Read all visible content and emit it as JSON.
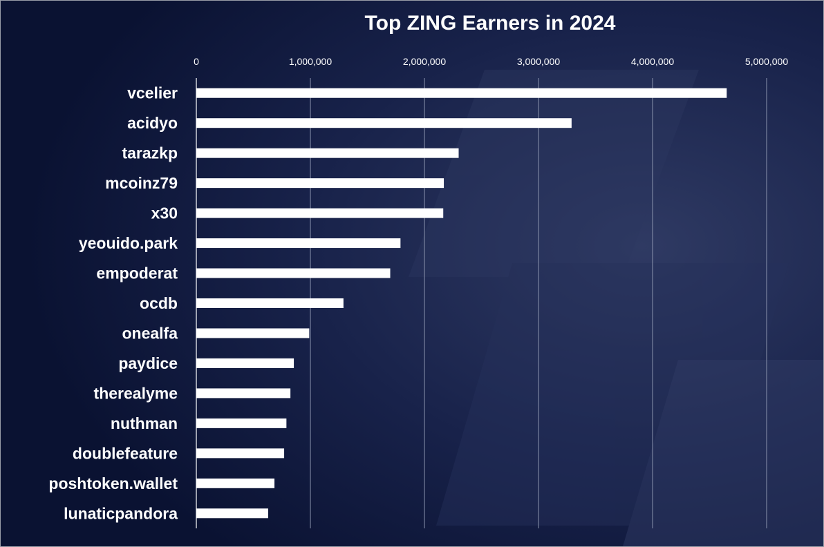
{
  "chart_data": {
    "type": "bar",
    "orientation": "horizontal",
    "title": "Top ZING Earners in 2024",
    "xlabel": "",
    "ylabel": "",
    "xlim": [
      0,
      5000000
    ],
    "x_ticks": [
      0,
      1000000,
      2000000,
      3000000,
      4000000,
      5000000
    ],
    "x_tick_labels": [
      "0",
      "1,000,000",
      "2,000,000",
      "3,000,000",
      "4,000,000",
      "5,000,000"
    ],
    "x_axis_position": "top",
    "grid": "vertical",
    "legend": "none",
    "categories": [
      "vcelier",
      "acidyo",
      "tarazkp",
      "mcoinz79",
      "x30",
      "yeouido.park",
      "empoderat",
      "ocdb",
      "onealfa",
      "paydice",
      "therealyme",
      "nuthman",
      "doublefeature",
      "poshtoken.wallet",
      "lunaticpandora"
    ],
    "values": [
      4650000,
      3290000,
      2300000,
      2170000,
      2165000,
      1790000,
      1700000,
      1290000,
      990000,
      855000,
      825000,
      790000,
      770000,
      685000,
      630000
    ]
  },
  "colors": {
    "background": "#0d1638",
    "bar": "#ffffff",
    "text": "#ffffff",
    "gridline": "#8a93ad"
  }
}
